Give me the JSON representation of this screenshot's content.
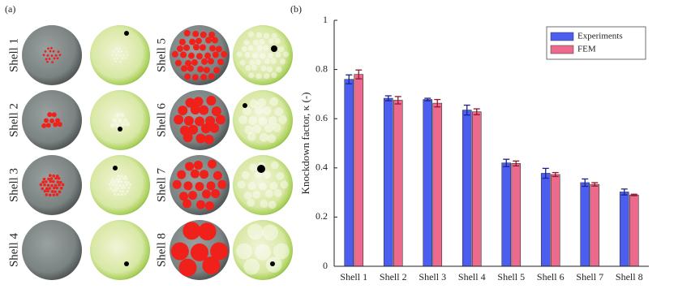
{
  "panel_a": {
    "label": "(a)",
    "shell_labels": [
      "Shell 1",
      "Shell 2",
      "Shell 3",
      "Shell 4",
      "Shell 5",
      "Shell 6",
      "Shell 7",
      "Shell 8"
    ]
  },
  "chart_data": {
    "type": "bar",
    "panel_label": "(b)",
    "y_label": "Knockdown factor, κ (-)",
    "categories": [
      "Shell 1",
      "Shell 2",
      "Shell 3",
      "Shell 4",
      "Shell 5",
      "Shell 6",
      "Shell 7",
      "Shell 8"
    ],
    "series": [
      {
        "name": "Experiments",
        "color": "#4b5ef0",
        "error_color": "#1c2190",
        "values": [
          0.76,
          0.683,
          0.678,
          0.635,
          0.42,
          0.378,
          0.34,
          0.302
        ],
        "errors": [
          0.018,
          0.01,
          0.005,
          0.02,
          0.015,
          0.02,
          0.015,
          0.012
        ]
      },
      {
        "name": "FEM",
        "color": "#ec6a8c",
        "error_color": "#8c1a2c",
        "values": [
          0.78,
          0.675,
          0.663,
          0.628,
          0.418,
          0.373,
          0.333,
          0.29
        ],
        "errors": [
          0.018,
          0.015,
          0.015,
          0.012,
          0.01,
          0.008,
          0.007,
          0.003
        ]
      }
    ],
    "ylim": [
      0,
      1
    ],
    "yticks": [
      0,
      0.2,
      0.4,
      0.6,
      0.8,
      1
    ],
    "legend": "upper-right"
  }
}
